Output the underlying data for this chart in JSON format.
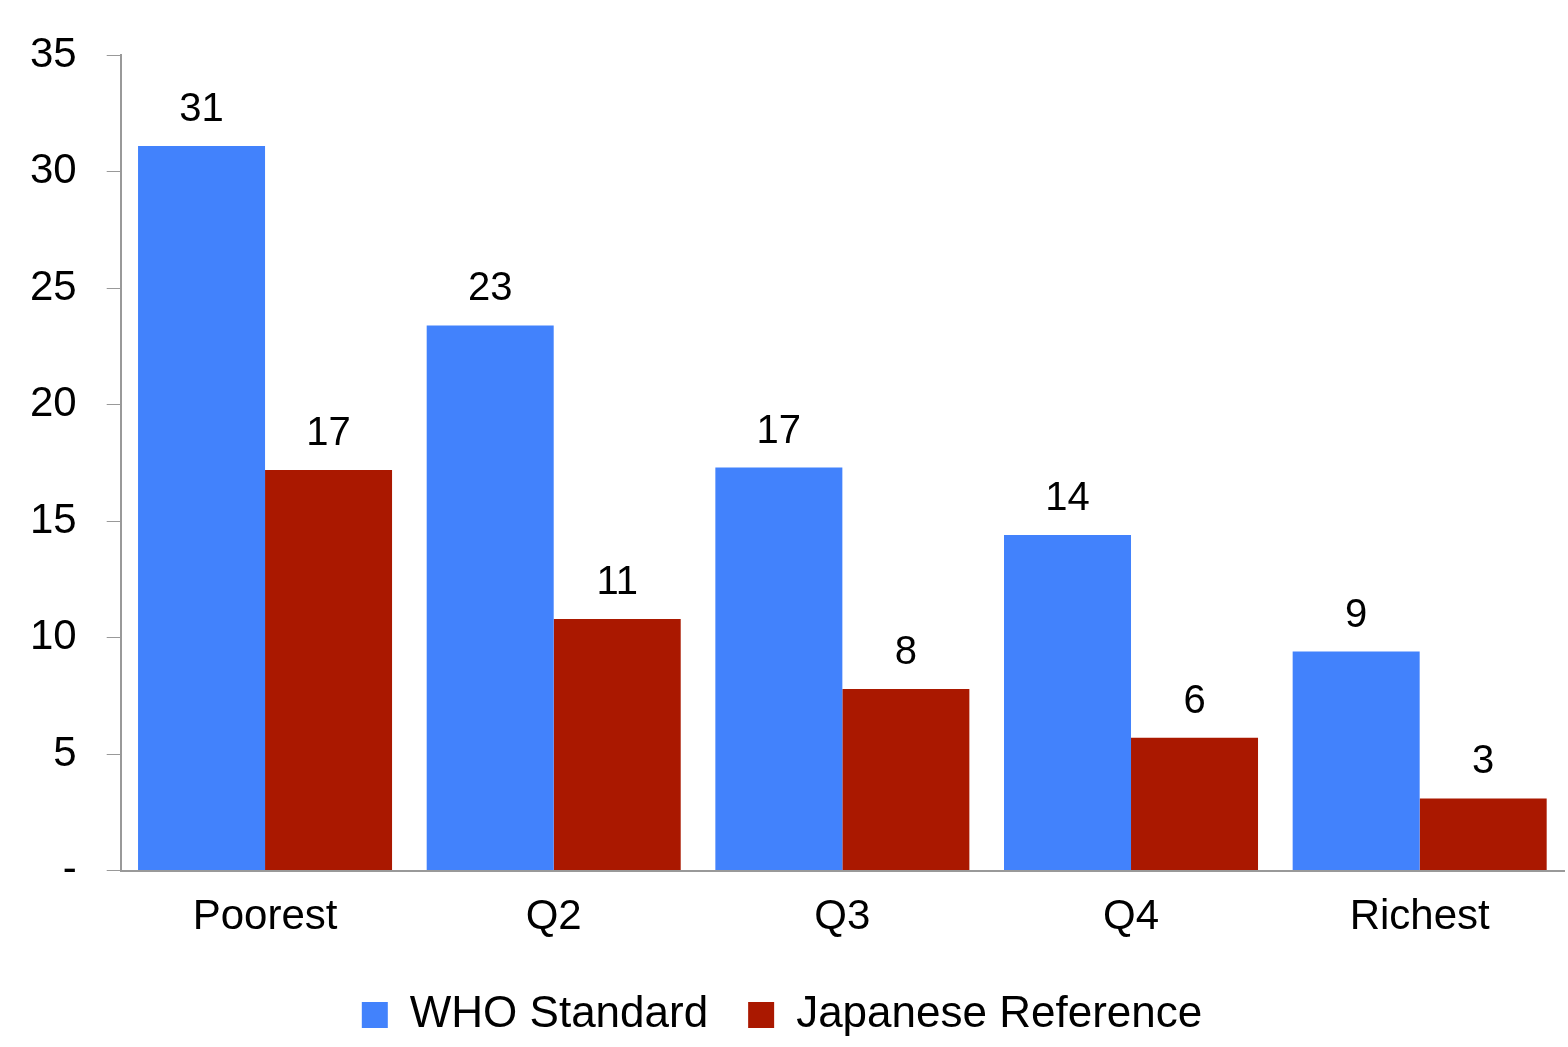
{
  "chart_data": {
    "type": "bar",
    "categories": [
      "Poorest",
      "Q2",
      "Q3",
      "Q4",
      "Richest"
    ],
    "series": [
      {
        "name": "WHO Standard",
        "color": "#4282fc",
        "values": [
          31.1,
          23.4,
          17.3,
          14.4,
          9.4
        ],
        "value_labels": [
          "31",
          "23",
          "17",
          "14",
          "9"
        ]
      },
      {
        "name": "Japanese Reference",
        "color": "#aa1800",
        "values": [
          17.2,
          10.8,
          7.8,
          5.7,
          3.1
        ],
        "value_labels": [
          "17",
          "11",
          "8",
          "6",
          "3"
        ]
      }
    ],
    "ylim": [
      0,
      35
    ],
    "yticks": [
      {
        "value": 0,
        "label": "-"
      },
      5,
      10,
      15,
      20,
      25,
      30,
      35
    ],
    "grid": false,
    "legend": "bottom"
  }
}
